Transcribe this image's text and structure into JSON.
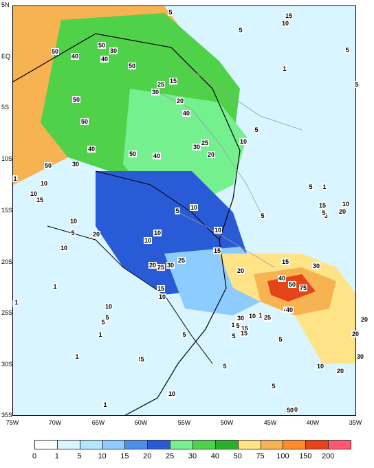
{
  "map": {
    "lat_ticks": [
      "5N",
      "EQ",
      "5S",
      "10S",
      "15S",
      "20S",
      "25S",
      "30S",
      "35S"
    ],
    "lon_ticks": [
      "75W",
      "70W",
      "65W",
      "60W",
      "55W",
      "50W",
      "45W",
      "40W",
      "35W"
    ],
    "contour_labels": [
      "5",
      "15",
      "10",
      "5",
      "50",
      "40",
      "30",
      "50",
      "50",
      "40",
      "5",
      "1",
      "5",
      "50",
      "50",
      "30",
      "25",
      "15",
      "20",
      "40",
      "5",
      "40",
      "25",
      "30",
      "20",
      "10",
      "50",
      "40",
      "50",
      "30",
      "15",
      "10",
      "10",
      "1",
      "5",
      "1",
      "10",
      "5",
      "5",
      "15",
      "5",
      "20",
      "10",
      "5",
      "10",
      "10",
      "10",
      "10",
      "15",
      "20",
      "30",
      "25",
      "15",
      "25",
      "15",
      "10",
      "20",
      "40",
      "50",
      "75",
      "30",
      "5",
      "5",
      "10",
      "1",
      "1",
      "5",
      "25",
      "40",
      "50",
      "5",
      "15",
      "1",
      "5",
      "10",
      "1",
      "20",
      "30",
      "10",
      "5",
      "20",
      "10",
      "40",
      "1",
      "1",
      "1",
      "10",
      "50",
      "10",
      "5",
      "5",
      "5",
      "1",
      "1",
      "30",
      "20",
      "5",
      "40",
      "15",
      "5",
      "25",
      "15",
      "20",
      "5"
    ]
  },
  "colorbar": {
    "values": [
      "0",
      "1",
      "5",
      "10",
      "15",
      "20",
      "25",
      "30",
      "40",
      "50",
      "75",
      "100",
      "150",
      "200"
    ],
    "colors": [
      "#ffffff",
      "#d9f5ff",
      "#b3e7ff",
      "#8ecbff",
      "#4d8fe6",
      "#2a5bd6",
      "#74f08f",
      "#4fd14a",
      "#27b12a",
      "#ffe487",
      "#f7b352",
      "#ff8b2b",
      "#e34518",
      "#ff5870"
    ]
  }
}
